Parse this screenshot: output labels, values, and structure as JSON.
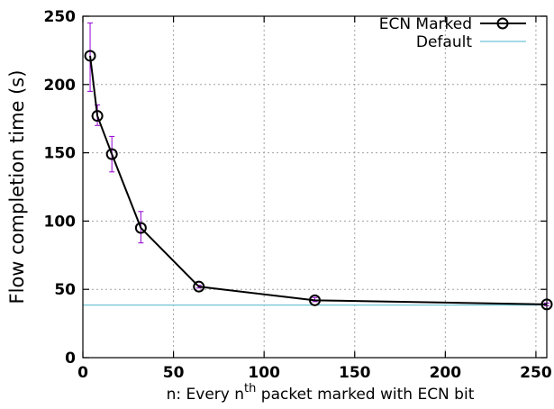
{
  "chart_data": {
    "type": "line",
    "title": "",
    "xlabel_prefix": "n: Every n",
    "xlabel_sup": "th",
    "xlabel_suffix": " packet marked with ECN bit",
    "ylabel": "Flow completion time (s)",
    "xlim": [
      0,
      256
    ],
    "ylim": [
      0,
      250
    ],
    "xticks": [
      0,
      50,
      100,
      150,
      200,
      250
    ],
    "yticks": [
      0,
      50,
      100,
      150,
      200,
      250
    ],
    "grid": true,
    "legend_position": "top-right",
    "series": [
      {
        "name": "ECN Marked",
        "color": "#000000",
        "errorbar_color": "#9400d3",
        "marker": "circle",
        "x": [
          4,
          8,
          16,
          32,
          64,
          128,
          256
        ],
        "y": [
          221,
          177,
          149,
          95,
          52,
          42,
          39
        ],
        "err_low": [
          195,
          170,
          136,
          84,
          51,
          41,
          38
        ],
        "err_high": [
          245,
          185,
          162,
          107,
          53,
          44,
          40
        ]
      },
      {
        "name": "Default",
        "color": "#6fc3d6",
        "type": "hline",
        "y": 38.5
      }
    ]
  }
}
